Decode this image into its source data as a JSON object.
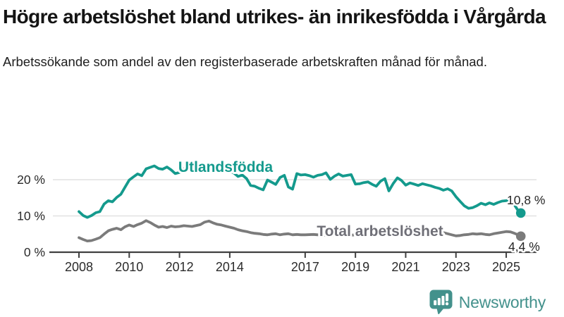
{
  "header": {
    "title": "Högre arbetslöshet bland utrikes- än inrikesfödda i Vårgårda",
    "subtitle": "Arbetssökande som andel av den registerbaserade arbetskraften månad för månad."
  },
  "branding": {
    "logo_text": "Newsworthy",
    "logo_icon": "bar-chart-speech-bubble-icon",
    "logo_color": "#43918c"
  },
  "colors": {
    "foreign_born_line": "#149a8d",
    "total_line": "#7b7b7b",
    "total_label": "#6f6f77",
    "axis": "#404040",
    "grid": "#e1e1e1"
  },
  "chart_data": {
    "type": "line",
    "title": "Högre arbetslöshet bland utrikes- än inrikesfödda i Vårgårda",
    "xlabel": "",
    "ylabel": "",
    "grid": "horizontal",
    "legend_position": "inline-labels",
    "xlim": [
      2007.8,
      2026.1
    ],
    "ylim": [
      0,
      25
    ],
    "x_ticks": [
      {
        "value": 2008,
        "label": "2008"
      },
      {
        "value": 2010,
        "label": "2010"
      },
      {
        "value": 2012,
        "label": "2012"
      },
      {
        "value": 2014,
        "label": "2014"
      },
      {
        "value": 2017,
        "label": "2017"
      },
      {
        "value": 2019,
        "label": "2019"
      },
      {
        "value": 2021,
        "label": "2021"
      },
      {
        "value": 2023,
        "label": "2023"
      },
      {
        "value": 2025,
        "label": "2025"
      }
    ],
    "y_ticks": [
      {
        "value": 0,
        "label": "0 %"
      },
      {
        "value": 10,
        "label": "10 %"
      },
      {
        "value": 20,
        "label": "20 %"
      }
    ],
    "series": [
      {
        "name": "Utlandsfödda",
        "color": "#149a8d",
        "end_value_label": "10,8 %",
        "points": [
          [
            2008.0,
            11.2
          ],
          [
            2008.17,
            10.1
          ],
          [
            2008.33,
            9.6
          ],
          [
            2008.5,
            10.1
          ],
          [
            2008.67,
            10.9
          ],
          [
            2008.83,
            11.2
          ],
          [
            2009.0,
            13.3
          ],
          [
            2009.17,
            14.2
          ],
          [
            2009.33,
            13.9
          ],
          [
            2009.5,
            15.1
          ],
          [
            2009.67,
            16.0
          ],
          [
            2009.83,
            17.9
          ],
          [
            2010.0,
            19.9
          ],
          [
            2010.17,
            20.8
          ],
          [
            2010.33,
            21.6
          ],
          [
            2010.5,
            21.1
          ],
          [
            2010.67,
            23.0
          ],
          [
            2010.83,
            23.4
          ],
          [
            2011.0,
            23.8
          ],
          [
            2011.17,
            23.1
          ],
          [
            2011.33,
            22.9
          ],
          [
            2011.5,
            23.5
          ],
          [
            2011.67,
            22.7
          ],
          [
            2011.83,
            21.7
          ],
          [
            2012.0,
            22.0
          ],
          [
            2012.17,
            23.0
          ],
          [
            2012.33,
            23.7
          ],
          [
            2012.5,
            23.2
          ],
          [
            2012.67,
            22.7
          ],
          [
            2012.83,
            23.2
          ],
          [
            2013.0,
            22.9
          ],
          [
            2013.17,
            23.4
          ],
          [
            2013.33,
            23.2
          ],
          [
            2013.5,
            23.0
          ],
          [
            2013.67,
            22.6
          ],
          [
            2013.83,
            22.3
          ],
          [
            2014.0,
            22.4
          ],
          [
            2014.17,
            21.8
          ],
          [
            2014.33,
            20.9
          ],
          [
            2014.5,
            21.3
          ],
          [
            2014.67,
            20.3
          ],
          [
            2014.83,
            18.4
          ],
          [
            2015.0,
            18.2
          ],
          [
            2015.17,
            17.6
          ],
          [
            2015.33,
            17.2
          ],
          [
            2015.5,
            19.9
          ],
          [
            2015.67,
            19.3
          ],
          [
            2015.83,
            18.7
          ],
          [
            2016.0,
            20.6
          ],
          [
            2016.17,
            21.2
          ],
          [
            2016.33,
            18.0
          ],
          [
            2016.5,
            17.4
          ],
          [
            2016.67,
            21.7
          ],
          [
            2016.83,
            21.3
          ],
          [
            2017.0,
            21.4
          ],
          [
            2017.17,
            21.1
          ],
          [
            2017.33,
            20.7
          ],
          [
            2017.5,
            21.2
          ],
          [
            2017.67,
            21.4
          ],
          [
            2017.83,
            21.9
          ],
          [
            2018.0,
            20.1
          ],
          [
            2018.17,
            21.0
          ],
          [
            2018.33,
            21.6
          ],
          [
            2018.5,
            21.0
          ],
          [
            2018.67,
            21.2
          ],
          [
            2018.83,
            21.4
          ],
          [
            2019.0,
            18.8
          ],
          [
            2019.17,
            18.9
          ],
          [
            2019.33,
            19.2
          ],
          [
            2019.5,
            19.4
          ],
          [
            2019.67,
            18.7
          ],
          [
            2019.83,
            18.2
          ],
          [
            2020.0,
            19.6
          ],
          [
            2020.17,
            20.3
          ],
          [
            2020.33,
            16.9
          ],
          [
            2020.5,
            18.9
          ],
          [
            2020.67,
            20.5
          ],
          [
            2020.83,
            19.8
          ],
          [
            2021.0,
            18.5
          ],
          [
            2021.17,
            19.1
          ],
          [
            2021.33,
            18.8
          ],
          [
            2021.5,
            18.4
          ],
          [
            2021.67,
            18.9
          ],
          [
            2021.83,
            18.6
          ],
          [
            2022.0,
            18.3
          ],
          [
            2022.17,
            17.9
          ],
          [
            2022.33,
            17.6
          ],
          [
            2022.5,
            17.1
          ],
          [
            2022.67,
            17.5
          ],
          [
            2022.83,
            16.9
          ],
          [
            2023.0,
            15.3
          ],
          [
            2023.17,
            14.0
          ],
          [
            2023.33,
            12.8
          ],
          [
            2023.5,
            12.1
          ],
          [
            2023.67,
            12.3
          ],
          [
            2023.83,
            12.8
          ],
          [
            2024.0,
            13.5
          ],
          [
            2024.17,
            13.1
          ],
          [
            2024.33,
            13.6
          ],
          [
            2024.5,
            13.2
          ],
          [
            2024.67,
            13.7
          ],
          [
            2024.83,
            14.1
          ],
          [
            2025.0,
            14.2
          ],
          [
            2025.17,
            14.8
          ],
          [
            2025.33,
            13.0
          ],
          [
            2025.5,
            11.2
          ],
          [
            2025.58,
            10.8
          ]
        ]
      },
      {
        "name": "Total arbetslöshet",
        "color": "#7b7b7b",
        "end_value_label": "4,4 %",
        "points": [
          [
            2008.0,
            4.0
          ],
          [
            2008.17,
            3.5
          ],
          [
            2008.33,
            3.1
          ],
          [
            2008.5,
            3.2
          ],
          [
            2008.67,
            3.6
          ],
          [
            2008.83,
            4.0
          ],
          [
            2009.0,
            5.0
          ],
          [
            2009.17,
            5.9
          ],
          [
            2009.33,
            6.3
          ],
          [
            2009.5,
            6.6
          ],
          [
            2009.67,
            6.2
          ],
          [
            2009.83,
            7.0
          ],
          [
            2010.0,
            7.5
          ],
          [
            2010.17,
            7.1
          ],
          [
            2010.33,
            7.6
          ],
          [
            2010.5,
            8.0
          ],
          [
            2010.67,
            8.7
          ],
          [
            2010.83,
            8.2
          ],
          [
            2011.0,
            7.5
          ],
          [
            2011.17,
            6.9
          ],
          [
            2011.33,
            7.1
          ],
          [
            2011.5,
            6.8
          ],
          [
            2011.67,
            7.2
          ],
          [
            2011.83,
            7.0
          ],
          [
            2012.0,
            7.1
          ],
          [
            2012.17,
            7.3
          ],
          [
            2012.5,
            7.1
          ],
          [
            2012.83,
            7.6
          ],
          [
            2013.0,
            8.3
          ],
          [
            2013.17,
            8.6
          ],
          [
            2013.33,
            8.1
          ],
          [
            2013.5,
            7.7
          ],
          [
            2013.67,
            7.5
          ],
          [
            2013.83,
            7.2
          ],
          [
            2014.0,
            6.9
          ],
          [
            2014.17,
            6.6
          ],
          [
            2014.33,
            6.2
          ],
          [
            2014.5,
            5.9
          ],
          [
            2014.67,
            5.7
          ],
          [
            2014.83,
            5.4
          ],
          [
            2015.0,
            5.2
          ],
          [
            2015.17,
            5.1
          ],
          [
            2015.33,
            4.9
          ],
          [
            2015.5,
            4.8
          ],
          [
            2015.67,
            5.0
          ],
          [
            2015.83,
            5.1
          ],
          [
            2016.0,
            4.8
          ],
          [
            2016.17,
            5.0
          ],
          [
            2016.33,
            5.1
          ],
          [
            2016.5,
            4.8
          ],
          [
            2016.67,
            4.9
          ],
          [
            2016.83,
            4.8
          ],
          [
            2017.0,
            4.8
          ],
          [
            2017.33,
            4.9
          ],
          [
            2017.67,
            4.7
          ],
          [
            2018.0,
            4.6
          ],
          [
            2018.33,
            4.7
          ],
          [
            2018.67,
            4.6
          ],
          [
            2019.0,
            4.8
          ],
          [
            2019.33,
            4.9
          ],
          [
            2019.67,
            5.0
          ],
          [
            2020.0,
            5.2
          ],
          [
            2020.33,
            5.7
          ],
          [
            2020.67,
            5.8
          ],
          [
            2021.0,
            5.6
          ],
          [
            2021.33,
            5.4
          ],
          [
            2021.67,
            5.3
          ],
          [
            2022.0,
            5.3
          ],
          [
            2022.17,
            5.2
          ],
          [
            2022.33,
            5.3
          ],
          [
            2022.5,
            5.4
          ],
          [
            2022.67,
            5.1
          ],
          [
            2022.83,
            4.8
          ],
          [
            2023.0,
            4.5
          ],
          [
            2023.17,
            4.6
          ],
          [
            2023.33,
            4.8
          ],
          [
            2023.5,
            4.9
          ],
          [
            2023.67,
            5.1
          ],
          [
            2023.83,
            5.0
          ],
          [
            2024.0,
            5.1
          ],
          [
            2024.17,
            4.9
          ],
          [
            2024.33,
            4.8
          ],
          [
            2024.5,
            5.1
          ],
          [
            2024.67,
            5.3
          ],
          [
            2024.83,
            5.5
          ],
          [
            2025.0,
            5.7
          ],
          [
            2025.17,
            5.6
          ],
          [
            2025.33,
            5.2
          ],
          [
            2025.5,
            4.7
          ],
          [
            2025.58,
            4.4
          ]
        ]
      }
    ]
  }
}
